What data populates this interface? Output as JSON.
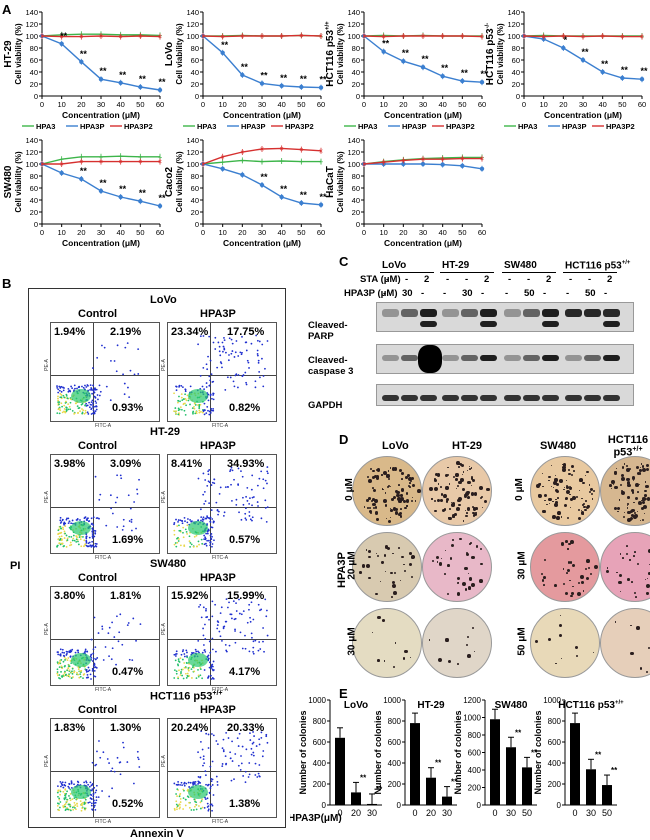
{
  "panels": {
    "a": "A",
    "b": "B",
    "c": "C",
    "d": "D",
    "e": "E"
  },
  "panel_a": {
    "x_axis_label": "Concentration (μM)",
    "y_axis_label": "Cell viability (%)",
    "legend": [
      "HPA3",
      "HPA3P",
      "HPA3P2"
    ],
    "colors": {
      "HPA3": "#3db54a",
      "HPA3P": "#3b7fd0",
      "HPA3P2": "#d6302f"
    }
  },
  "chart_data": [
    {
      "type": "line",
      "cell_line": "HT-29",
      "x": [
        0,
        10,
        20,
        30,
        40,
        50,
        60
      ],
      "series": [
        {
          "name": "HPA3",
          "values": [
            100,
            102,
            103,
            103,
            102,
            102,
            101
          ]
        },
        {
          "name": "HPA3P",
          "values": [
            100,
            87,
            57,
            28,
            22,
            15,
            10
          ]
        },
        {
          "name": "HPA3P2",
          "values": [
            100,
            99,
            99,
            100,
            99,
            100,
            99
          ]
        }
      ],
      "stars": [
        "",
        "**",
        "**",
        "**",
        "**",
        "**",
        "**"
      ],
      "ylim": [
        0,
        140
      ],
      "yticks": [
        0,
        20,
        40,
        60,
        80,
        100,
        120,
        140
      ]
    },
    {
      "type": "line",
      "cell_line": "LoVo",
      "x": [
        0,
        10,
        20,
        30,
        40,
        50,
        60
      ],
      "series": [
        {
          "name": "HPA3",
          "values": [
            100,
            100,
            101,
            100,
            100,
            101,
            100
          ]
        },
        {
          "name": "HPA3P",
          "values": [
            100,
            72,
            35,
            21,
            17,
            15,
            14
          ]
        },
        {
          "name": "HPA3P2",
          "values": [
            100,
            99,
            100,
            100,
            100,
            101,
            100
          ]
        }
      ],
      "stars": [
        "",
        "**",
        "**",
        "**",
        "**",
        "**",
        "**"
      ],
      "ylim": [
        0,
        140
      ],
      "yticks": [
        0,
        20,
        40,
        60,
        80,
        100,
        120,
        140
      ]
    },
    {
      "type": "line",
      "cell_line": "HCT116 p53+/+",
      "x": [
        0,
        10,
        20,
        30,
        40,
        50,
        60
      ],
      "series": [
        {
          "name": "HPA3",
          "values": [
            100,
            101,
            100,
            101,
            100,
            100,
            100
          ]
        },
        {
          "name": "HPA3P",
          "values": [
            100,
            74,
            58,
            48,
            33,
            25,
            23
          ]
        },
        {
          "name": "HPA3P2",
          "values": [
            100,
            99,
            100,
            100,
            100,
            100,
            99
          ]
        }
      ],
      "stars": [
        "",
        "**",
        "**",
        "**",
        "**",
        "**",
        "**"
      ],
      "ylim": [
        0,
        140
      ],
      "yticks": [
        0,
        20,
        40,
        60,
        80,
        100,
        120,
        140
      ]
    },
    {
      "type": "line",
      "cell_line": "HCT116 p53-/-",
      "x": [
        0,
        10,
        20,
        30,
        40,
        50,
        60
      ],
      "series": [
        {
          "name": "HPA3",
          "values": [
            100,
            101,
            100,
            100,
            100,
            100,
            100
          ]
        },
        {
          "name": "HPA3P",
          "values": [
            100,
            95,
            80,
            60,
            40,
            30,
            28
          ]
        },
        {
          "name": "HPA3P2",
          "values": [
            100,
            99,
            100,
            99,
            100,
            99,
            99
          ]
        }
      ],
      "stars": [
        "",
        "",
        "*",
        "**",
        "**",
        "**",
        "**"
      ],
      "ylim": [
        0,
        140
      ],
      "yticks": [
        0,
        20,
        40,
        60,
        80,
        100,
        120,
        140
      ]
    },
    {
      "type": "line",
      "cell_line": "SW480",
      "x": [
        0,
        10,
        20,
        30,
        40,
        50,
        60
      ],
      "series": [
        {
          "name": "HPA3",
          "values": [
            100,
            108,
            112,
            112,
            113,
            112,
            112
          ]
        },
        {
          "name": "HPA3P",
          "values": [
            100,
            85,
            75,
            55,
            45,
            38,
            30
          ]
        },
        {
          "name": "HPA3P2",
          "values": [
            100,
            100,
            104,
            104,
            104,
            104,
            104
          ]
        }
      ],
      "stars": [
        "",
        "",
        "**",
        "**",
        "**",
        "**",
        "**"
      ],
      "ylim": [
        0,
        140
      ],
      "yticks": [
        0,
        20,
        40,
        60,
        80,
        100,
        120,
        140
      ]
    },
    {
      "type": "line",
      "cell_line": "Caco2",
      "x": [
        0,
        10,
        20,
        30,
        40,
        50,
        60
      ],
      "series": [
        {
          "name": "HPA3",
          "values": [
            100,
            103,
            106,
            104,
            105,
            104,
            104
          ]
        },
        {
          "name": "HPA3P",
          "values": [
            100,
            92,
            82,
            65,
            45,
            35,
            32
          ]
        },
        {
          "name": "HPA3P2",
          "values": [
            100,
            112,
            120,
            125,
            126,
            124,
            122
          ]
        }
      ],
      "stars": [
        "",
        "",
        "",
        "**",
        "**",
        "**",
        "**"
      ],
      "ylim": [
        0,
        140
      ],
      "yticks": [
        0,
        20,
        40,
        60,
        80,
        100,
        120,
        140
      ]
    },
    {
      "type": "line",
      "cell_line": "HaCaT",
      "x": [
        0,
        10,
        20,
        30,
        40,
        50,
        60
      ],
      "series": [
        {
          "name": "HPA3",
          "values": [
            100,
            104,
            107,
            109,
            110,
            111,
            111
          ]
        },
        {
          "name": "HPA3P",
          "values": [
            100,
            100,
            100,
            100,
            99,
            97,
            92
          ]
        },
        {
          "name": "HPA3P2",
          "values": [
            100,
            103,
            106,
            108,
            108,
            109,
            109
          ]
        }
      ],
      "stars": [
        "",
        "",
        "",
        "",
        "",
        "",
        ""
      ],
      "ylim": [
        0,
        140
      ],
      "yticks": [
        0,
        20,
        40,
        60,
        80,
        100,
        120,
        140
      ]
    },
    {
      "type": "bar",
      "cell_line": "LoVo",
      "categories": [
        "0",
        "20",
        "30"
      ],
      "values": [
        640,
        120,
        10
      ],
      "stars": [
        "",
        "**",
        "**"
      ],
      "ylim": [
        0,
        1000
      ],
      "yticks": [
        0,
        200,
        400,
        600,
        800,
        1000
      ]
    },
    {
      "type": "bar",
      "cell_line": "HT-29",
      "categories": [
        "0",
        "20",
        "30"
      ],
      "values": [
        780,
        260,
        80
      ],
      "stars": [
        "",
        "**",
        "**"
      ],
      "ylim": [
        0,
        1000
      ],
      "yticks": [
        0,
        200,
        400,
        600,
        800,
        1000
      ]
    },
    {
      "type": "bar",
      "cell_line": "SW480",
      "categories": [
        "0",
        "30",
        "50"
      ],
      "values": [
        980,
        660,
        430
      ],
      "stars": [
        "",
        "**",
        "**"
      ],
      "ylim": [
        0,
        1200
      ],
      "yticks": [
        0,
        200,
        400,
        600,
        800,
        1000,
        1200
      ]
    },
    {
      "type": "bar",
      "cell_line": "HCT116 p53+/+",
      "categories": [
        "0",
        "30",
        "50"
      ],
      "values": [
        780,
        340,
        190
      ],
      "stars": [
        "",
        "**",
        "**"
      ],
      "ylim": [
        0,
        1000
      ],
      "yticks": [
        0,
        200,
        400,
        600,
        800,
        1000
      ]
    }
  ],
  "panel_a_titles": {
    "ht29": "HT-29",
    "lovo": "LoVo",
    "hct_pp": "HCT116 p53",
    "hct_pp_sup": "+/+",
    "hct_mm": "HCT116 p53",
    "hct_mm_sup": "-/-",
    "sw480": "SW480",
    "caco2": "Caco2",
    "hacat": "HaCaT"
  },
  "panel_b": {
    "y_axis": "PI",
    "x_axis": "Annexin V",
    "control": "Control",
    "treat": "HPA3P",
    "groups": [
      {
        "name": "LoVo",
        "control": [
          "1.94%",
          "2.19%",
          "0.93%"
        ],
        "treat": [
          "23.34%",
          "17.75%",
          "0.82%"
        ]
      },
      {
        "name": "HT-29",
        "control": [
          "3.98%",
          "3.09%",
          "1.69%"
        ],
        "treat": [
          "8.41%",
          "34.93%",
          "0.57%"
        ]
      },
      {
        "name": "SW480",
        "control": [
          "3.80%",
          "1.81%",
          "0.47%"
        ],
        "treat": [
          "15.92%",
          "15.99%",
          "4.17%"
        ]
      },
      {
        "name": "HCT116 p53",
        "sup": "+/+",
        "control": [
          "1.83%",
          "1.30%",
          "0.52%"
        ],
        "treat": [
          "20.24%",
          "20.33%",
          "1.38%"
        ]
      }
    ],
    "axis_fitc": "FITC-A",
    "axis_pe": "PE-A"
  },
  "panel_c": {
    "sta": "STA (μM)",
    "hpa3p": "HPA3P (μM)",
    "groups": [
      "LoVo",
      "HT-29",
      "SW480",
      "HCT116 p53"
    ],
    "sup": "+/+",
    "sta_marks": [
      "-",
      "-",
      "2",
      "-",
      "-",
      "2",
      "-",
      "-",
      "2",
      "-",
      "-",
      "2"
    ],
    "hpa_marks": [
      "-",
      "30",
      "-",
      "-",
      "30",
      "-",
      "-",
      "50",
      "-",
      "-",
      "50",
      "-"
    ],
    "rows": [
      "Cleaved-PARP",
      "Cleaved-caspase 3",
      "GAPDH"
    ],
    "row_parts": {
      "parp1": "Cleaved-",
      "parp2": "PARP",
      "cas1": "Cleaved-",
      "cas2": "caspase 3",
      "gapdh": "GAPDH"
    }
  },
  "panel_d": {
    "cols_left": [
      "LoVo",
      "HT-29"
    ],
    "cols_right": [
      "SW480",
      "HCT116"
    ],
    "right_sub": "p53",
    "right_sup": "+/+",
    "side": "HPA3P",
    "rows_left": [
      "0 μM",
      "20 μM",
      "30 μM"
    ],
    "rows_right": [
      "0 μM",
      "30 μM",
      "50 μM"
    ]
  },
  "panel_e": {
    "y_label": "Number of colonies",
    "x_prefix": "HPA3P(μM)",
    "titles": [
      "LoVo",
      "HT-29",
      "SW480",
      "HCT116 p53"
    ],
    "sup": "+/+"
  }
}
